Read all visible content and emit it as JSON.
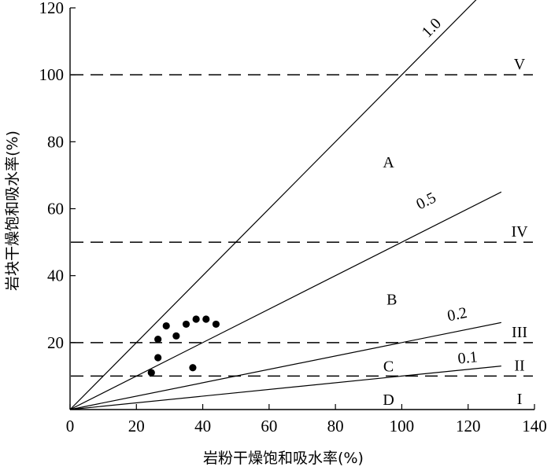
{
  "chart_data": {
    "type": "scatter",
    "xlabel": "岩粉干燥饱和吸水率(%)",
    "ylabel": "岩块干燥饱和吸水率(%)",
    "xlim": [
      0,
      140
    ],
    "ylim": [
      0,
      120
    ],
    "xticks": [
      0,
      20,
      40,
      60,
      80,
      100,
      120,
      140
    ],
    "yticks": [
      20,
      40,
      60,
      80,
      100,
      120
    ],
    "grid": false,
    "ratio_lines": [
      {
        "label": "1.0",
        "slope": 1.0,
        "x_end": 125,
        "label_x": 110,
        "label_y": 113
      },
      {
        "label": "0.5",
        "slope": 0.5,
        "x_end": 130,
        "label_x": 108,
        "label_y": 61
      },
      {
        "label": "0.2",
        "slope": 0.2,
        "x_end": 130,
        "label_x": 117,
        "label_y": 27
      },
      {
        "label": "0.1",
        "slope": 0.1,
        "x_end": 130,
        "label_x": 120,
        "label_y": 14
      }
    ],
    "reference_lines": [
      {
        "label": "V",
        "y": 100
      },
      {
        "label": "IV",
        "y": 50
      },
      {
        "label": "III",
        "y": 20
      },
      {
        "label": "II",
        "y": 10
      },
      {
        "label": "I",
        "y": 0
      }
    ],
    "region_labels": [
      {
        "label": "A",
        "x": 96,
        "y": 74
      },
      {
        "label": "B",
        "x": 97,
        "y": 33
      },
      {
        "label": "C",
        "x": 96,
        "y": 13
      },
      {
        "label": "D",
        "x": 96,
        "y": 3
      }
    ],
    "points": [
      {
        "x": 24.5,
        "y": 11
      },
      {
        "x": 26.5,
        "y": 15.5
      },
      {
        "x": 26.5,
        "y": 21
      },
      {
        "x": 29,
        "y": 25
      },
      {
        "x": 32,
        "y": 22
      },
      {
        "x": 35,
        "y": 25.5
      },
      {
        "x": 37,
        "y": 12.5
      },
      {
        "x": 38,
        "y": 27
      },
      {
        "x": 41,
        "y": 27
      },
      {
        "x": 44,
        "y": 25.5
      }
    ]
  }
}
